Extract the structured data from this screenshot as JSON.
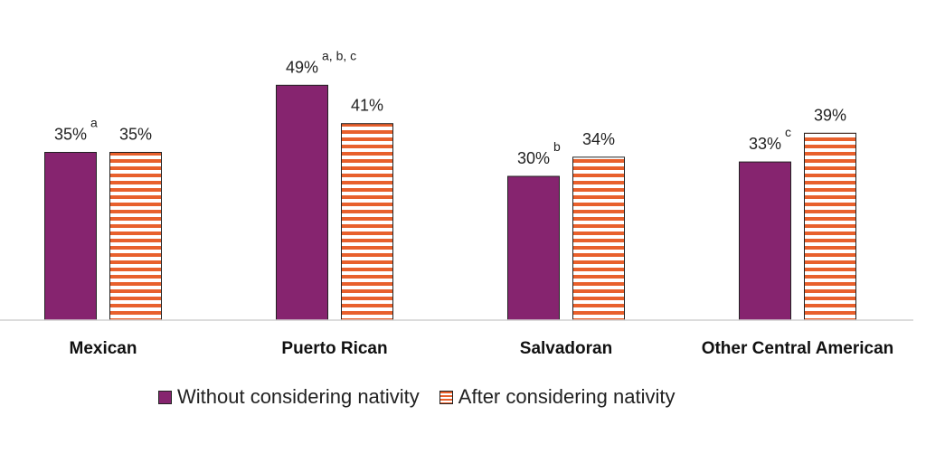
{
  "chart_data": {
    "type": "bar",
    "categories": [
      "Mexican",
      "Puerto Rican",
      "Salvadoran",
      "Other Central American"
    ],
    "series": [
      {
        "name": "Without considering nativity",
        "values": [
          35,
          49,
          30,
          33
        ],
        "labels": [
          "35%",
          "49%",
          "30%",
          "33%"
        ],
        "superscripts": [
          "a",
          "a, b, c",
          "b",
          "c"
        ],
        "color": "#86246f",
        "fill": "solid"
      },
      {
        "name": "After considering nativity",
        "values": [
          35,
          41,
          34,
          39
        ],
        "labels": [
          "35%",
          "41%",
          "34%",
          "39%"
        ],
        "superscripts": [
          "",
          "",
          "",
          ""
        ],
        "color": "#e8602c",
        "fill": "horizontal-stripes"
      }
    ],
    "ylim": [
      0,
      50
    ],
    "grid": false,
    "legend_position": "bottom"
  }
}
